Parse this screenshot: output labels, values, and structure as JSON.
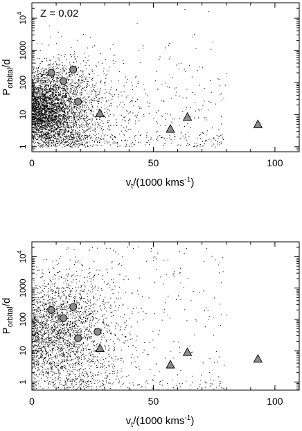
{
  "chart_data": [
    {
      "type": "scatter",
      "annotation": "Z = 0.02",
      "xlabel": "v_t/(1000 kms^-1)",
      "ylabel": "P_orbital/d",
      "xlim": [
        0,
        110
      ],
      "ylim": [
        0.7,
        30000
      ],
      "yscale": "log",
      "x_ticks": [
        0,
        50,
        100
      ],
      "y_ticks": [
        "1",
        "10",
        "100",
        "1000",
        "10^4"
      ],
      "grid": false,
      "series": [
        {
          "kind": "background-dots",
          "count": 4200,
          "x_range": [
            0,
            80
          ],
          "x_typical": 6,
          "x_spread": 10,
          "logp_range": [
            0,
            4.3
          ],
          "logp_typical": 1.2,
          "logp_spread": 0.55
        },
        {
          "kind": "circles",
          "color": "#8c8c8c",
          "points": [
            [
              8,
              200
            ],
            [
              17,
              250
            ],
            [
              13,
              110
            ],
            [
              19,
              25
            ]
          ]
        },
        {
          "kind": "triangles",
          "color": "#8c8c8c",
          "points": [
            [
              28,
              11
            ],
            [
              57,
              3.6
            ],
            [
              64,
              8.5
            ],
            [
              93,
              5
            ]
          ]
        }
      ]
    },
    {
      "type": "scatter",
      "annotation": "",
      "xlabel": "v_t/(1000 kms^-1)",
      "ylabel": "P_orbital/d",
      "xlim": [
        0,
        110
      ],
      "ylim": [
        0.55,
        30000
      ],
      "yscale": "log",
      "x_ticks": [
        0,
        50,
        100
      ],
      "y_ticks": [
        "1",
        "10",
        "100",
        "1000",
        "10^4"
      ],
      "grid": false,
      "series": [
        {
          "kind": "background-dots",
          "count": 2700,
          "x_range": [
            0,
            80
          ],
          "x_typical": 12,
          "x_spread": 12,
          "logp_range": [
            -0.3,
            4.4
          ],
          "logp_typical": 1.6,
          "logp_spread": 0.75
        },
        {
          "kind": "circles",
          "color": "#8c8c8c",
          "points": [
            [
              8,
              200
            ],
            [
              17,
              250
            ],
            [
              13,
              110
            ],
            [
              19,
              25
            ],
            [
              27,
              40
            ]
          ]
        },
        {
          "kind": "triangles",
          "color": "#8c8c8c",
          "points": [
            [
              28,
              12
            ],
            [
              57,
              3.6
            ],
            [
              64,
              9
            ],
            [
              93,
              5.5
            ]
          ]
        }
      ]
    }
  ]
}
